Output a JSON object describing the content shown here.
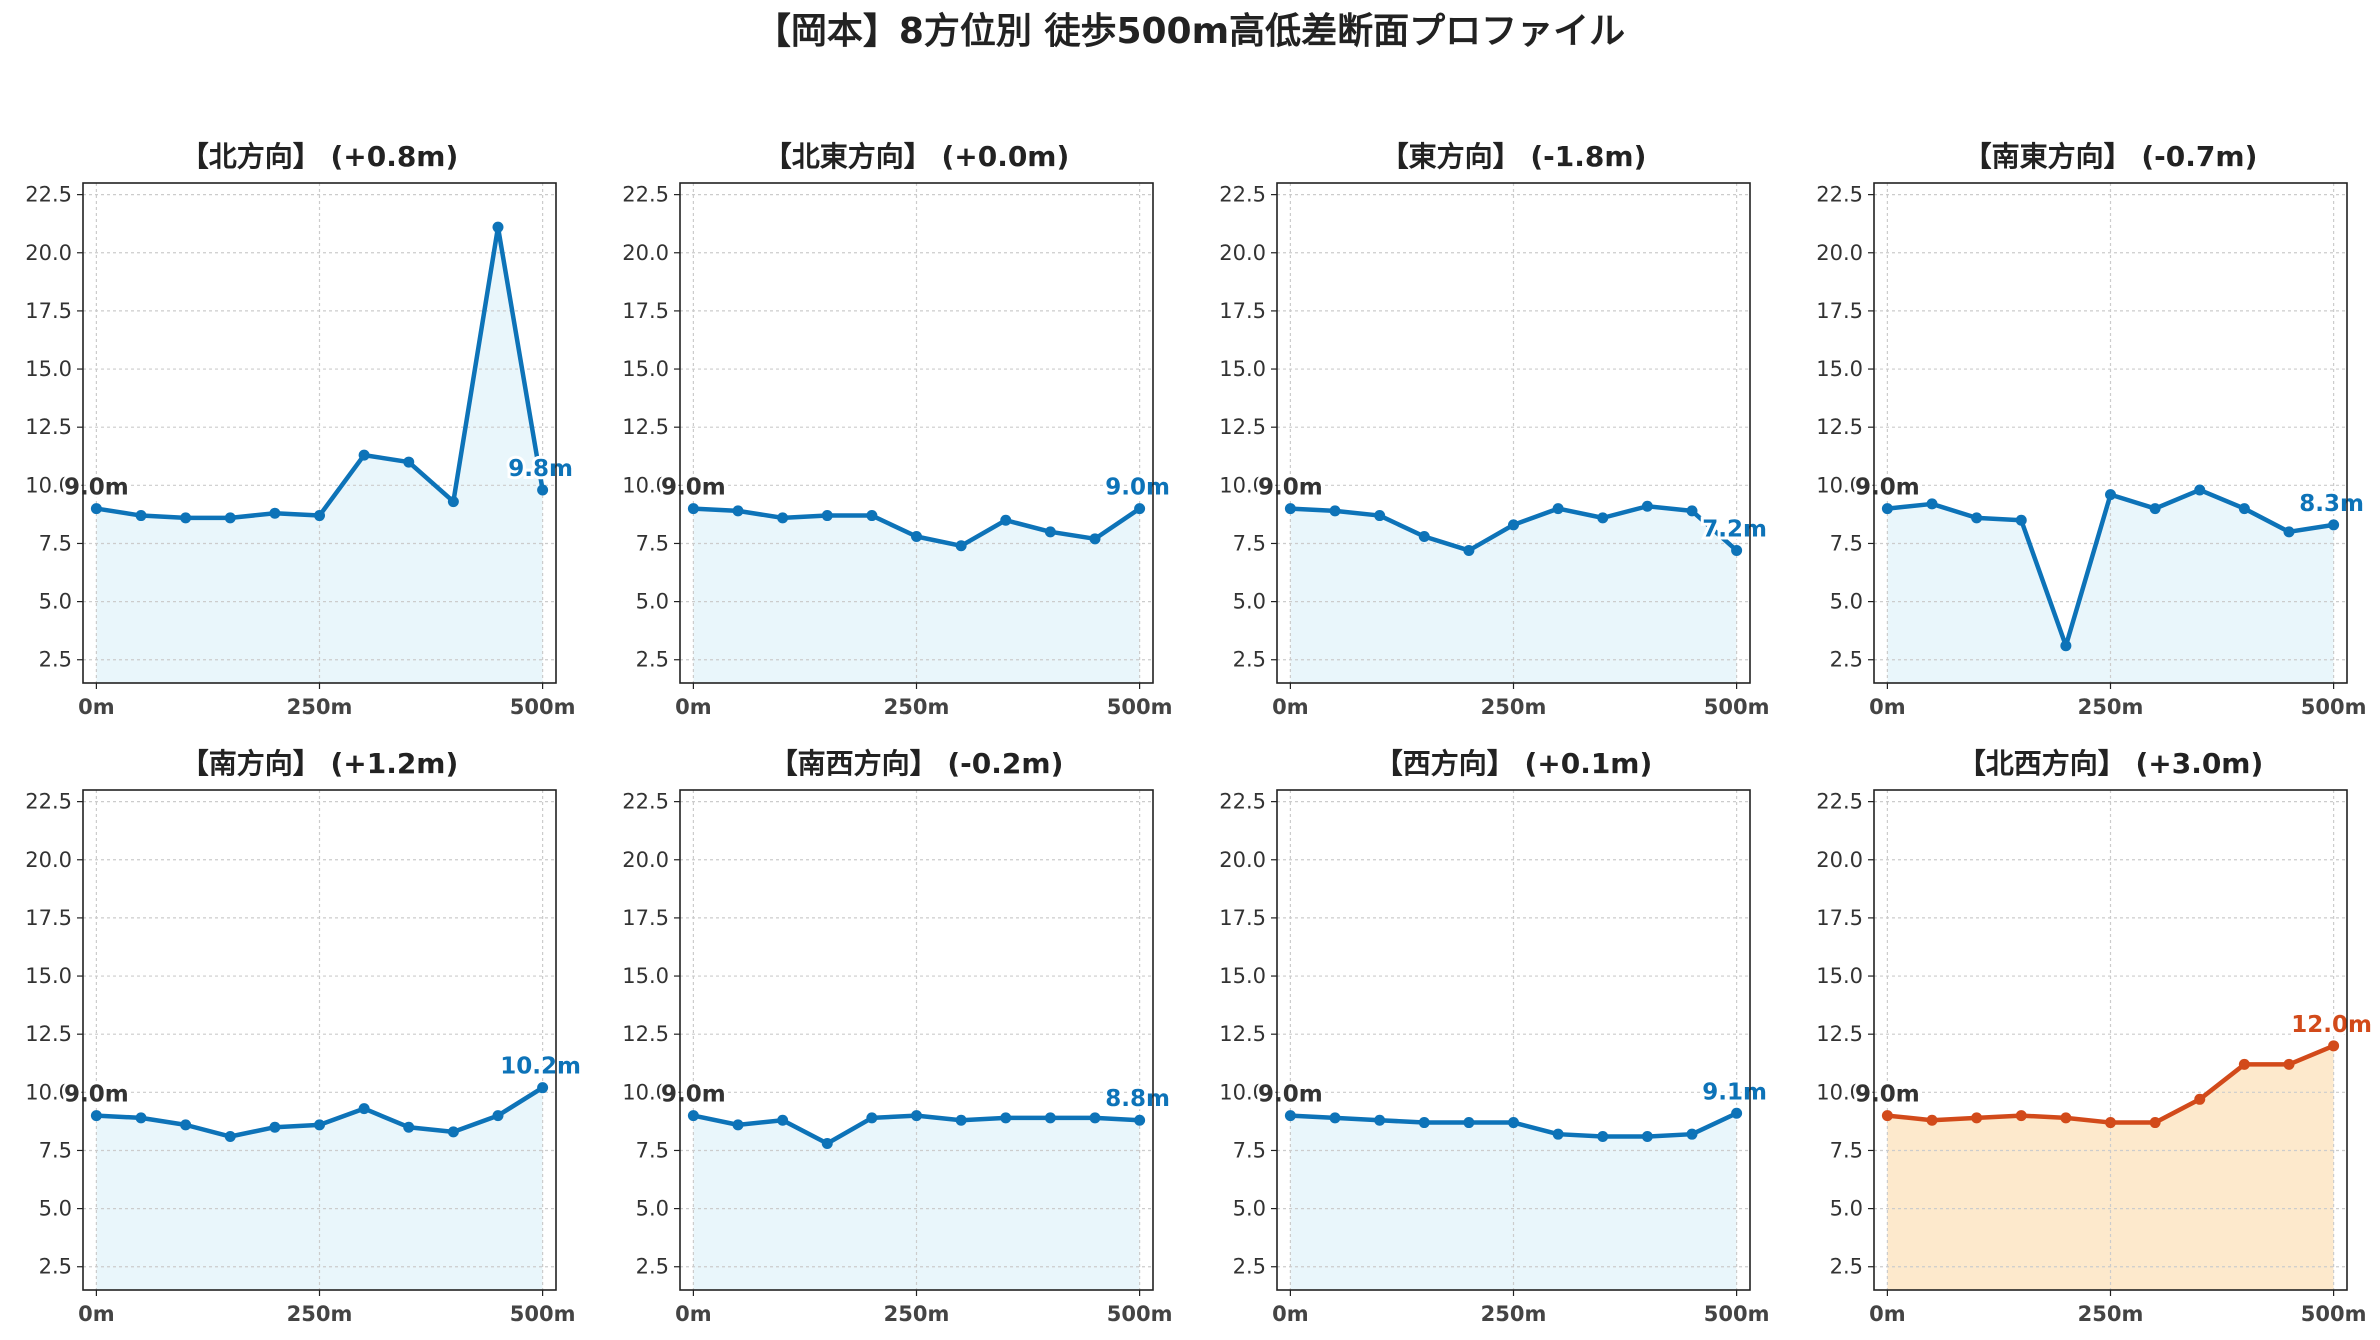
{
  "figure": {
    "title": "【岡本】8方位別 徒歩500m高低差断面プロファイル"
  },
  "colors": {
    "normal_line": "#0d73b8",
    "normal_fill": "#e9f6fb",
    "highlight_line": "#d24a1a",
    "highlight_fill": "#fde9cc",
    "start_label": "#333333",
    "grid": "#cccccc"
  },
  "chart_data": [
    {
      "type": "area",
      "title": "【北方向】 (+0.8m)",
      "x": [
        0,
        50,
        100,
        150,
        200,
        250,
        300,
        350,
        400,
        450,
        500
      ],
      "values": [
        9.0,
        8.7,
        8.6,
        8.6,
        8.8,
        8.7,
        11.3,
        11.0,
        9.3,
        21.1,
        9.8
      ],
      "start_label": "9.0m",
      "end_label": "9.8m",
      "highlight": false,
      "xticks": [
        "0m",
        "250m",
        "500m"
      ],
      "yticks": [
        "2.5",
        "5.0",
        "7.5",
        "10.0",
        "12.5",
        "15.0",
        "17.5",
        "20.0",
        "22.5"
      ],
      "xlim": [
        -15,
        515
      ],
      "ylim": [
        1.5,
        23.0
      ],
      "grid": true
    },
    {
      "type": "area",
      "title": "【北東方向】 (+0.0m)",
      "x": [
        0,
        50,
        100,
        150,
        200,
        250,
        300,
        350,
        400,
        450,
        500
      ],
      "values": [
        9.0,
        8.9,
        8.6,
        8.7,
        8.7,
        7.8,
        7.4,
        8.5,
        8.0,
        7.7,
        9.0
      ],
      "start_label": "9.0m",
      "end_label": "9.0m",
      "highlight": false,
      "xticks": [
        "0m",
        "250m",
        "500m"
      ],
      "yticks": [
        "2.5",
        "5.0",
        "7.5",
        "10.0",
        "12.5",
        "15.0",
        "17.5",
        "20.0",
        "22.5"
      ],
      "xlim": [
        -15,
        515
      ],
      "ylim": [
        1.5,
        23.0
      ],
      "grid": true
    },
    {
      "type": "area",
      "title": "【東方向】 (-1.8m)",
      "x": [
        0,
        50,
        100,
        150,
        200,
        250,
        300,
        350,
        400,
        450,
        500
      ],
      "values": [
        9.0,
        8.9,
        8.7,
        7.8,
        7.2,
        8.3,
        9.0,
        8.6,
        9.1,
        8.9,
        7.2
      ],
      "start_label": "9.0m",
      "end_label": "7.2m",
      "highlight": false,
      "xticks": [
        "0m",
        "250m",
        "500m"
      ],
      "yticks": [
        "2.5",
        "5.0",
        "7.5",
        "10.0",
        "12.5",
        "15.0",
        "17.5",
        "20.0",
        "22.5"
      ],
      "xlim": [
        -15,
        515
      ],
      "ylim": [
        1.5,
        23.0
      ],
      "grid": true
    },
    {
      "type": "area",
      "title": "【南東方向】 (-0.7m)",
      "x": [
        0,
        50,
        100,
        150,
        200,
        250,
        300,
        350,
        400,
        450,
        500
      ],
      "values": [
        9.0,
        9.2,
        8.6,
        8.5,
        3.1,
        9.6,
        9.0,
        9.8,
        9.0,
        8.0,
        8.3
      ],
      "start_label": "9.0m",
      "end_label": "8.3m",
      "highlight": false,
      "xticks": [
        "0m",
        "250m",
        "500m"
      ],
      "yticks": [
        "2.5",
        "5.0",
        "7.5",
        "10.0",
        "12.5",
        "15.0",
        "17.5",
        "20.0",
        "22.5"
      ],
      "xlim": [
        -15,
        515
      ],
      "ylim": [
        1.5,
        23.0
      ],
      "grid": true
    },
    {
      "type": "area",
      "title": "【南方向】 (+1.2m)",
      "x": [
        0,
        50,
        100,
        150,
        200,
        250,
        300,
        350,
        400,
        450,
        500
      ],
      "values": [
        9.0,
        8.9,
        8.6,
        8.1,
        8.5,
        8.6,
        9.3,
        8.5,
        8.3,
        9.0,
        10.2
      ],
      "start_label": "9.0m",
      "end_label": "10.2m",
      "highlight": false,
      "xticks": [
        "0m",
        "250m",
        "500m"
      ],
      "yticks": [
        "2.5",
        "5.0",
        "7.5",
        "10.0",
        "12.5",
        "15.0",
        "17.5",
        "20.0",
        "22.5"
      ],
      "xlim": [
        -15,
        515
      ],
      "ylim": [
        1.5,
        23.0
      ],
      "grid": true
    },
    {
      "type": "area",
      "title": "【南西方向】 (-0.2m)",
      "x": [
        0,
        50,
        100,
        150,
        200,
        250,
        300,
        350,
        400,
        450,
        500
      ],
      "values": [
        9.0,
        8.6,
        8.8,
        7.8,
        8.9,
        9.0,
        8.8,
        8.9,
        8.9,
        8.9,
        8.8
      ],
      "start_label": "9.0m",
      "end_label": "8.8m",
      "highlight": false,
      "xticks": [
        "0m",
        "250m",
        "500m"
      ],
      "yticks": [
        "2.5",
        "5.0",
        "7.5",
        "10.0",
        "12.5",
        "15.0",
        "17.5",
        "20.0",
        "22.5"
      ],
      "xlim": [
        -15,
        515
      ],
      "ylim": [
        1.5,
        23.0
      ],
      "grid": true
    },
    {
      "type": "area",
      "title": "【西方向】 (+0.1m)",
      "x": [
        0,
        50,
        100,
        150,
        200,
        250,
        300,
        350,
        400,
        450,
        500
      ],
      "values": [
        9.0,
        8.9,
        8.8,
        8.7,
        8.7,
        8.7,
        8.2,
        8.1,
        8.1,
        8.2,
        9.1
      ],
      "start_label": "9.0m",
      "end_label": "9.1m",
      "highlight": false,
      "xticks": [
        "0m",
        "250m",
        "500m"
      ],
      "yticks": [
        "2.5",
        "5.0",
        "7.5",
        "10.0",
        "12.5",
        "15.0",
        "17.5",
        "20.0",
        "22.5"
      ],
      "xlim": [
        -15,
        515
      ],
      "ylim": [
        1.5,
        23.0
      ],
      "grid": true
    },
    {
      "type": "area",
      "title": "【北西方向】 (+3.0m)",
      "x": [
        0,
        50,
        100,
        150,
        200,
        250,
        300,
        350,
        400,
        450,
        500
      ],
      "values": [
        9.0,
        8.8,
        8.9,
        9.0,
        8.9,
        8.7,
        8.7,
        9.7,
        11.2,
        11.2,
        12.0
      ],
      "start_label": "9.0m",
      "end_label": "12.0m",
      "highlight": true,
      "xticks": [
        "0m",
        "250m",
        "500m"
      ],
      "yticks": [
        "2.5",
        "5.0",
        "7.5",
        "10.0",
        "12.5",
        "15.0",
        "17.5",
        "20.0",
        "22.5"
      ],
      "xlim": [
        -15,
        515
      ],
      "ylim": [
        1.5,
        23.0
      ],
      "grid": true
    }
  ]
}
